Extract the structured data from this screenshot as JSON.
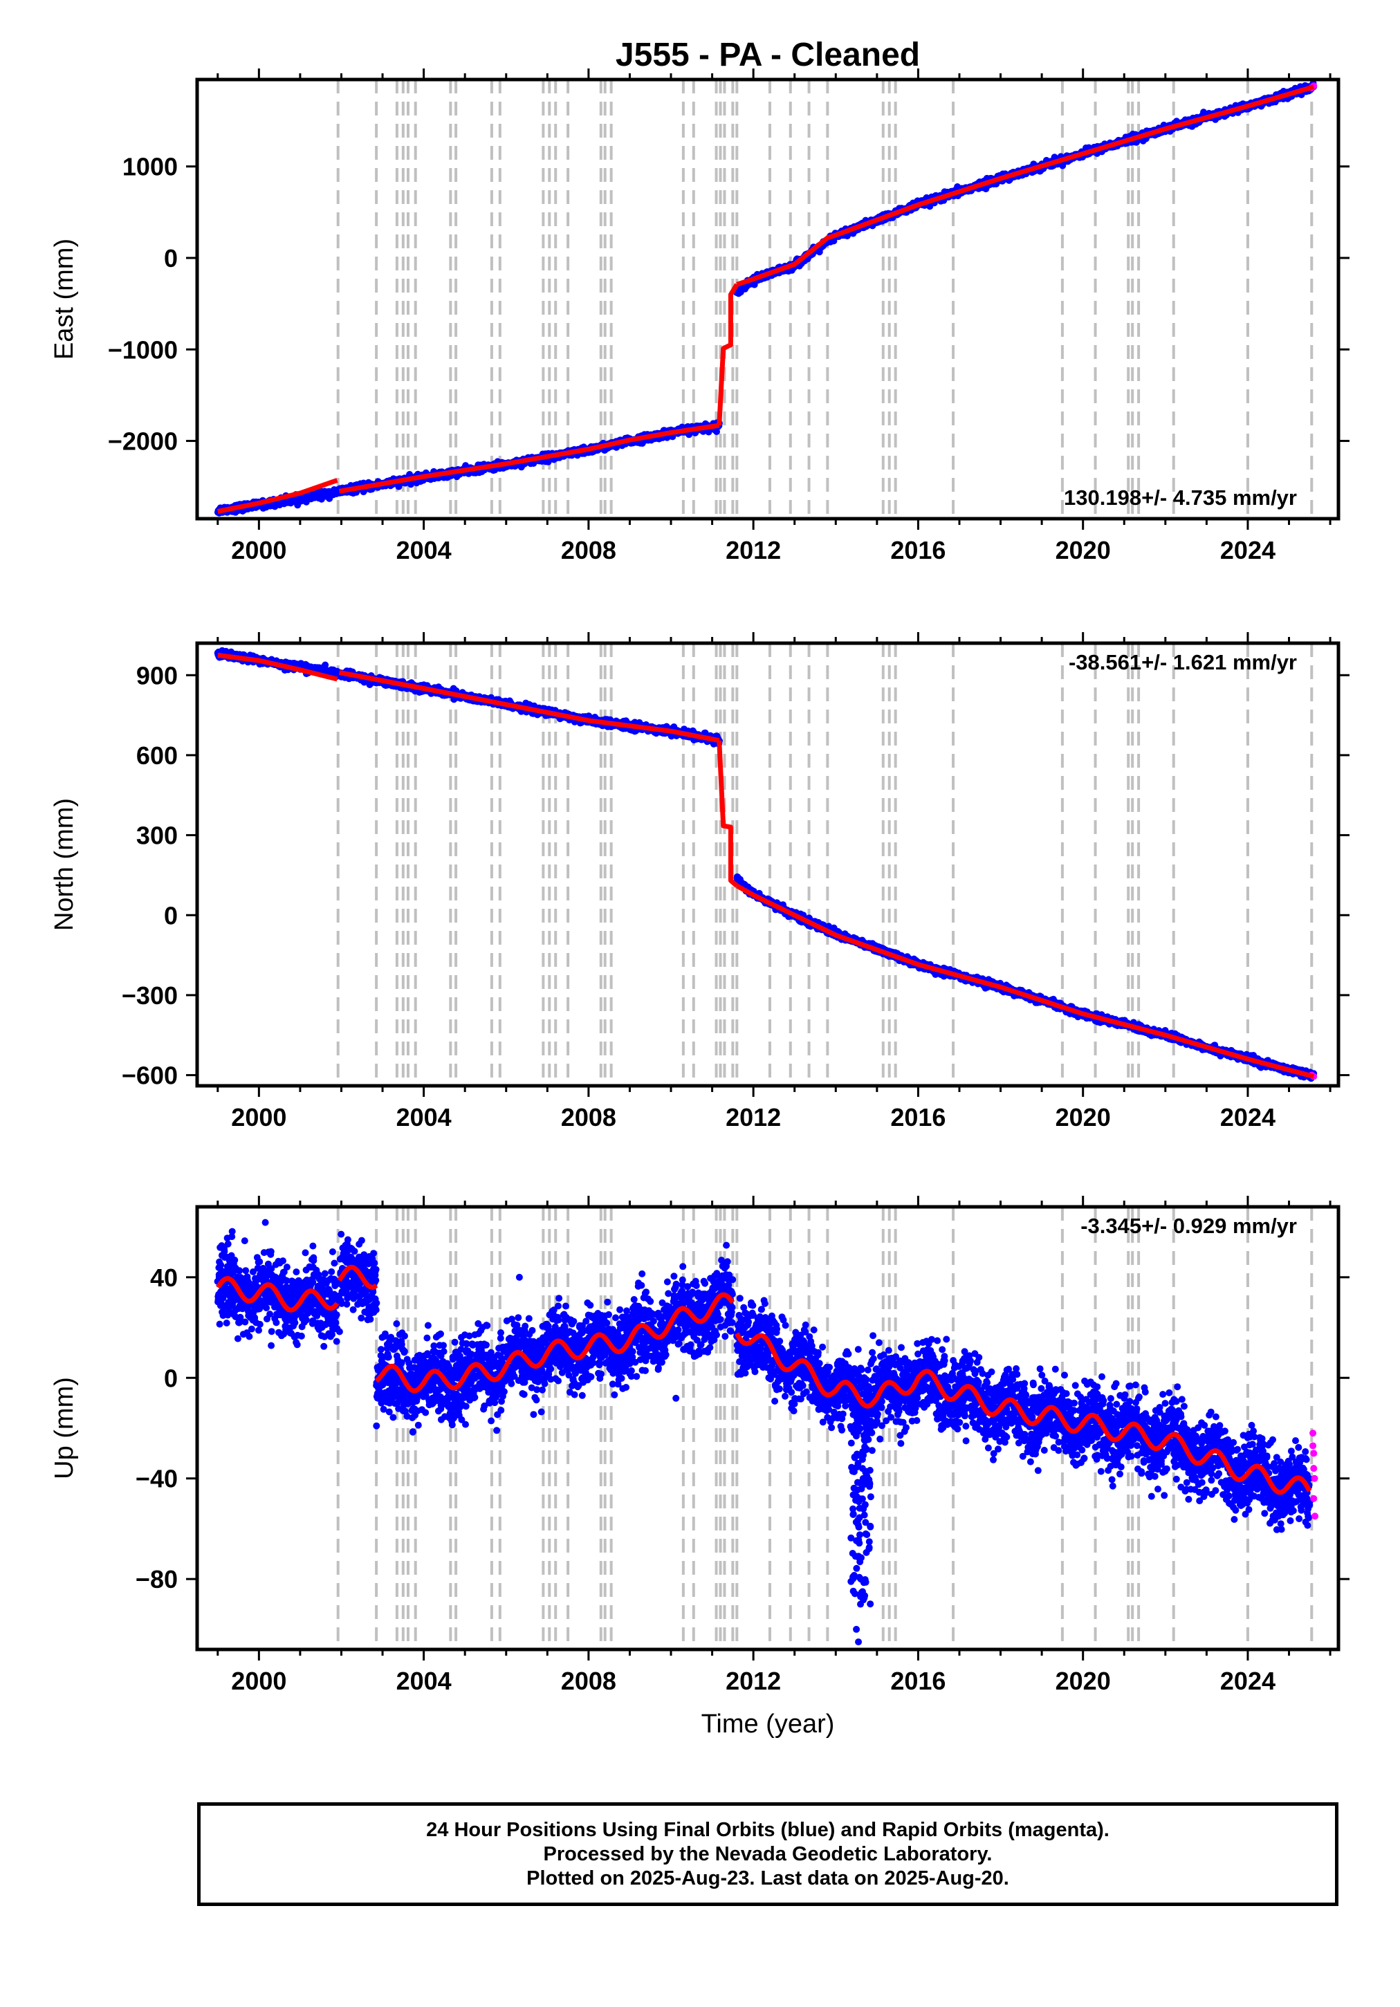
{
  "title": "J555  - PA - Cleaned",
  "x_axis_label": "Time (year)",
  "colors": {
    "final_orbits": "#0000ff",
    "rapid_orbits": "#ff00ff",
    "model_fit": "#ff0000",
    "event_lines": "#c0c0c0"
  },
  "footer": {
    "line1": "24 Hour Positions Using Final Orbits (blue) and Rapid Orbits (magenta).",
    "line2": "Processed by the Nevada Geodetic Laboratory.",
    "line3": "Plotted on 2025-Aug-23. Last data on 2025-Aug-20."
  },
  "chart_data": [
    {
      "type": "scatter",
      "panel": "east",
      "ylabel": "East (mm)",
      "xlim": [
        1998.5,
        2026.2
      ],
      "ylim": [
        -2850,
        1950
      ],
      "xticks": [
        2000,
        2004,
        2008,
        2012,
        2016,
        2020,
        2024
      ],
      "yticks": [
        -2000,
        -1000,
        0,
        1000
      ],
      "ytick_labels": [
        "−2000",
        "−1000",
        "0",
        "1000"
      ],
      "velocity_label": "130.198+/- 4.735 mm/yr",
      "velocity_position": "bottom-right",
      "grid": false,
      "event_lines": [
        2001.92,
        2002.85,
        2003.35,
        2003.5,
        2003.62,
        2003.8,
        2004.65,
        2004.78,
        2005.65,
        2005.85,
        2006.9,
        2007.05,
        2007.2,
        2007.5,
        2008.3,
        2008.4,
        2008.55,
        2010.3,
        2010.55,
        2011.1,
        2011.2,
        2011.3,
        2011.5,
        2011.6,
        2012.4,
        2012.9,
        2013.35,
        2013.8,
        2015.15,
        2015.3,
        2015.45,
        2016.85,
        2019.5,
        2020.3,
        2021.1,
        2021.2,
        2021.35,
        2022.2,
        2024.0,
        2025.55
      ],
      "series": [
        {
          "name": "Final Orbits",
          "segments": [
            {
              "x": [
                1999.0,
                2000.0,
                2001.0,
                2001.9
              ],
              "y": [
                -2760,
                -2700,
                -2630,
                -2560
              ]
            },
            {
              "x": [
                2001.95,
                2004.0,
                2006.0,
                2008.0,
                2010.0,
                2011.17
              ],
              "y": [
                -2550,
                -2400,
                -2260,
                -2100,
                -1910,
                -1830
              ]
            },
            {
              "x": [
                2011.6,
                2012.0,
                2013.0,
                2014.0,
                2016.0,
                2018.0,
                2020.0,
                2022.0,
                2024.0,
                2025.6
              ],
              "y": [
                -360,
                -240,
                -80,
                240,
                580,
                870,
                1140,
                1410,
                1660,
                1870
              ]
            }
          ]
        },
        {
          "name": "Rapid Orbits",
          "segments": [
            {
              "x": [
                2025.55,
                2025.6
              ],
              "y": [
                1860,
                1880
              ]
            }
          ]
        },
        {
          "name": "Model Fit",
          "segments": [
            {
              "x": [
                1999.0,
                2000.0,
                2001.0,
                2001.9
              ],
              "y": [
                -2770,
                -2680,
                -2570,
                -2430
              ]
            },
            {
              "x": [
                2001.95,
                2004.0,
                2006.0,
                2008.0,
                2009.0,
                2010.0,
                2011.17
              ],
              "y": [
                -2550,
                -2390,
                -2250,
                -2090,
                -1990,
                -1910,
                -1830
              ]
            },
            {
              "x": [
                2011.17,
                2011.27,
                2011.27,
                2011.45,
                2011.45,
                2011.6
              ],
              "y": [
                -1830,
                -990,
                -990,
                -950,
                -400,
                -290
              ]
            },
            {
              "x": [
                2011.6,
                2012.0,
                2013.0,
                2013.8,
                2014.0,
                2016.0,
                2018.0,
                2020.0,
                2022.0,
                2024.0,
                2025.6
              ],
              "y": [
                -290,
                -230,
                -70,
                220,
                250,
                580,
                870,
                1140,
                1410,
                1660,
                1870
              ]
            }
          ]
        }
      ]
    },
    {
      "type": "scatter",
      "panel": "north",
      "ylabel": "North (mm)",
      "xlim": [
        1998.5,
        2026.2
      ],
      "ylim": [
        -640,
        1020
      ],
      "xticks": [
        2000,
        2004,
        2008,
        2012,
        2016,
        2020,
        2024
      ],
      "yticks": [
        -600,
        -300,
        0,
        300,
        600,
        900
      ],
      "ytick_labels": [
        "−600",
        "−300",
        "0",
        "300",
        "600",
        "900"
      ],
      "velocity_label": "-38.561+/- 1.621 mm/yr",
      "velocity_position": "top-right",
      "grid": false,
      "event_lines": [
        2001.92,
        2002.85,
        2003.35,
        2003.5,
        2003.62,
        2003.8,
        2004.65,
        2004.78,
        2005.65,
        2005.85,
        2006.9,
        2007.05,
        2007.2,
        2007.5,
        2008.3,
        2008.4,
        2008.55,
        2010.3,
        2010.55,
        2011.1,
        2011.2,
        2011.3,
        2011.5,
        2011.6,
        2012.4,
        2012.9,
        2013.35,
        2013.8,
        2015.15,
        2015.3,
        2015.45,
        2016.85,
        2019.5,
        2020.3,
        2021.1,
        2021.2,
        2021.35,
        2022.2,
        2024.0,
        2025.55
      ],
      "series": [
        {
          "name": "Final Orbits",
          "segments": [
            {
              "x": [
                1999.0,
                2000.0,
                2001.0,
                2001.9
              ],
              "y": [
                980,
                955,
                930,
                905
              ]
            },
            {
              "x": [
                2001.95,
                2004.0,
                2006.0,
                2008.0,
                2010.0,
                2011.17
              ],
              "y": [
                905,
                850,
                790,
                730,
                690,
                655
              ]
            },
            {
              "x": [
                2011.6,
                2012.0,
                2013.0,
                2014.0,
                2016.0,
                2018.0,
                2020.0,
                2022.0,
                2024.0,
                2025.6
              ],
              "y": [
                135,
                80,
                0,
                -70,
                -185,
                -270,
                -370,
                -450,
                -540,
                -605
              ]
            }
          ]
        },
        {
          "name": "Rapid Orbits",
          "segments": [
            {
              "x": [
                2025.55,
                2025.6
              ],
              "y": [
                -600,
                -605
              ]
            }
          ]
        },
        {
          "name": "Model Fit",
          "segments": [
            {
              "x": [
                1999.0,
                2000.0,
                2001.0,
                2001.9
              ],
              "y": [
                975,
                955,
                920,
                885
              ]
            },
            {
              "x": [
                2001.95,
                2004.0,
                2006.0,
                2008.0,
                2010.0,
                2011.17
              ],
              "y": [
                910,
                850,
                790,
                730,
                690,
                655
              ]
            },
            {
              "x": [
                2011.17,
                2011.27,
                2011.27,
                2011.45,
                2011.45,
                2011.6
              ],
              "y": [
                655,
                335,
                335,
                330,
                130,
                110
              ]
            },
            {
              "x": [
                2011.6,
                2012.0,
                2013.0,
                2014.0,
                2016.0,
                2018.0,
                2020.0,
                2022.0,
                2024.0,
                2025.6
              ],
              "y": [
                110,
                75,
                0,
                -75,
                -185,
                -270,
                -370,
                -450,
                -540,
                -605
              ]
            }
          ]
        }
      ]
    },
    {
      "type": "scatter",
      "panel": "up",
      "ylabel": "Up (mm)",
      "xlim": [
        1998.5,
        2026.2
      ],
      "ylim": [
        -108,
        68
      ],
      "xticks": [
        2000,
        2004,
        2008,
        2012,
        2016,
        2020,
        2024
      ],
      "yticks": [
        -80,
        -40,
        0,
        40
      ],
      "ytick_labels": [
        "−80",
        "−40",
        "0",
        "40"
      ],
      "velocity_label": "-3.345+/- 0.929 mm/yr",
      "velocity_position": "top-right",
      "grid": false,
      "event_lines": [
        2001.92,
        2002.85,
        2003.35,
        2003.5,
        2003.62,
        2003.8,
        2004.65,
        2004.78,
        2005.65,
        2005.85,
        2006.9,
        2007.05,
        2007.2,
        2007.5,
        2008.3,
        2008.4,
        2008.55,
        2010.3,
        2010.55,
        2011.1,
        2011.2,
        2011.3,
        2011.5,
        2011.6,
        2012.4,
        2012.9,
        2013.35,
        2013.8,
        2015.15,
        2015.3,
        2015.45,
        2016.85,
        2019.5,
        2020.3,
        2021.1,
        2021.2,
        2021.35,
        2022.2,
        2024.0,
        2025.55
      ],
      "outliers": [
        {
          "x": [
            2014.5,
            2014.55,
            2014.6,
            2014.65
          ],
          "y": [
            -100,
            -105,
            -90,
            -85
          ]
        }
      ],
      "series": [
        {
          "name": "Final Orbits",
          "segments": [
            {
              "x": [
                1999.0,
                2000.0,
                2001.0,
                2001.9
              ],
              "y": [
                36,
                34,
                30,
                32
              ]
            },
            {
              "x": [
                2001.95,
                2002.85
              ],
              "y": [
                40,
                40
              ]
            },
            {
              "x": [
                2002.85,
                2004.0,
                2005.5,
                2007.0,
                2009.0,
                2010.0,
                2011.0,
                2011.5
              ],
              "y": [
                0,
                -2,
                2,
                10,
                15,
                22,
                28,
                30
              ]
            },
            {
              "x": [
                2011.6,
                2012.0,
                2013.0,
                2014.0,
                2015.0,
                2016.0,
                2018.0,
                2020.0,
                2022.0,
                2024.0,
                2025.5
              ],
              "y": [
                20,
                15,
                5,
                -5,
                -8,
                0,
                -12,
                -18,
                -25,
                -38,
                -45
              ]
            }
          ]
        },
        {
          "name": "Rapid Orbits",
          "segments": [
            {
              "x": [
                2025.58,
                2025.6,
                2025.62,
                2025.6,
                2025.63,
                2025.6,
                2025.58
              ],
              "y": [
                -22,
                -30,
                -40,
                -48,
                -55,
                -36,
                -27
              ]
            }
          ]
        },
        {
          "name": "Model Fit",
          "segments": [
            {
              "x": [
                1999.0,
                2000.0,
                2001.0,
                2001.9
              ],
              "y": [
                36,
                34,
                30,
                32
              ]
            },
            {
              "x": [
                2001.95,
                2002.85
              ],
              "y": [
                40,
                40
              ]
            },
            {
              "x": [
                2002.85,
                2004.0,
                2005.5,
                2007.0,
                2009.0,
                2010.0,
                2011.0,
                2011.5
              ],
              "y": [
                2,
                -2,
                2,
                10,
                15,
                22,
                28,
                30
              ]
            },
            {
              "x": [
                2011.6,
                2012.0,
                2013.0,
                2014.0,
                2015.0,
                2016.0,
                2018.0,
                2020.0,
                2022.0,
                2024.0,
                2025.5
              ],
              "y": [
                20,
                15,
                5,
                -5,
                -8,
                0,
                -12,
                -18,
                -25,
                -38,
                -45
              ]
            }
          ]
        }
      ]
    }
  ]
}
